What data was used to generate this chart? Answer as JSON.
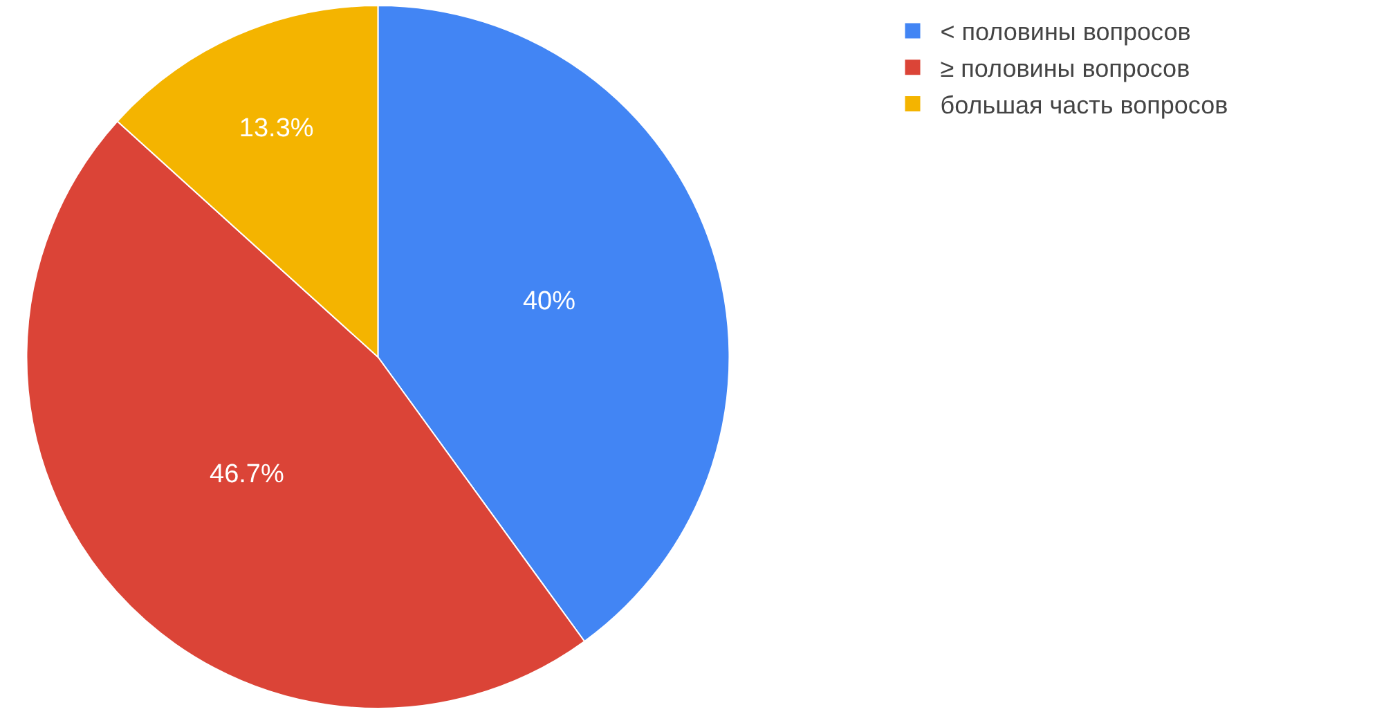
{
  "chart_data": {
    "type": "pie",
    "categories": [
      "< половины вопросов",
      "≥ половины вопросов",
      "большая часть вопросов"
    ],
    "values": [
      40,
      46.7,
      13.3
    ],
    "colors": [
      "#4285f4",
      "#db4437",
      "#f4b400"
    ],
    "value_labels": [
      "40%",
      "46.7%",
      "13.3%"
    ],
    "legend": "top right"
  }
}
